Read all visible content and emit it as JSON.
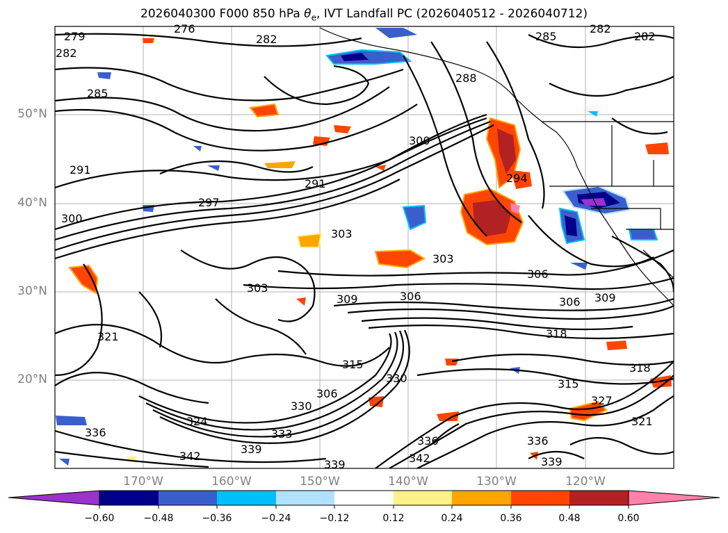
{
  "title_prefix": "2026040300 F000 850 hPa ",
  "title_symbol": "θ",
  "title_subscript": "e",
  "title_suffix": ", IVT Landfall PC (2026040512 - 2026040712)",
  "lat_labels": [
    "50°N",
    "40°N",
    "30°N",
    "20°N"
  ],
  "lon_labels": [
    "170°W",
    "160°W",
    "150°W",
    "140°W",
    "130°W",
    "120°W"
  ],
  "colorbar": {
    "ticks": [
      "−0.60",
      "−0.48",
      "−0.36",
      "−0.24",
      "−0.12",
      "0.12",
      "0.24",
      "0.36",
      "0.48",
      "0.60"
    ],
    "colors": [
      "#9a32cd",
      "#00008b",
      "#3a5fcd",
      "#00bfff",
      "#b0e2ff",
      "#ffffff",
      "#fff08a",
      "#ffa500",
      "#ff4500",
      "#b22222",
      "#ff82ab",
      "#ff82ab"
    ]
  },
  "contour_labels": [
    "279",
    "276",
    "282",
    "282",
    "285",
    "282",
    "282",
    "285",
    "288",
    "291",
    "294",
    "300",
    "291",
    "297",
    "300",
    "303",
    "303",
    "306",
    "306",
    "309",
    "303",
    "309",
    "306",
    "315",
    "318",
    "318",
    "315",
    "321",
    "330",
    "306",
    "330",
    "336",
    "333",
    "339",
    "342",
    "342",
    "339",
    "339",
    "336",
    "336",
    "321",
    "327",
    "324"
  ]
}
